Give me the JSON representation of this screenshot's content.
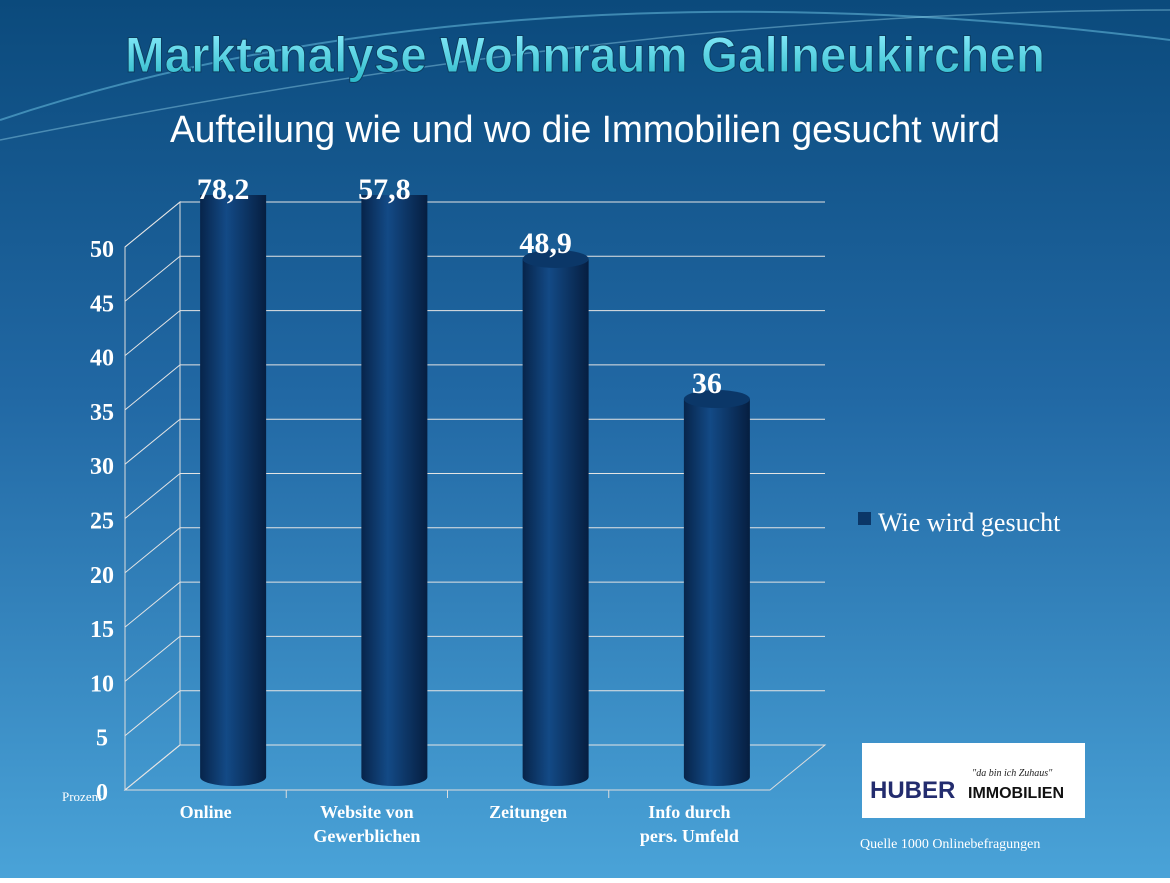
{
  "chart_data": {
    "type": "bar",
    "title": "Marktanalyse Wohnraum Gallneukirchen",
    "subtitle": "Aufteilung wie und wo die Immobilien gesucht wird",
    "y_label": "Prozent",
    "categories": [
      "Online",
      "Website von Gewerblichen",
      "Zeitungen",
      "Info durch pers. Umfeld"
    ],
    "series": [
      {
        "name": "Wie wird gesucht",
        "color": "#0b3768",
        "values": [
          78.2,
          57.8,
          48.9,
          36
        ],
        "value_labels": [
          "78,2",
          "57,8",
          "48,9",
          "36"
        ]
      }
    ],
    "ylim": [
      0,
      50
    ],
    "yticks": [
      0,
      5,
      10,
      15,
      20,
      25,
      30,
      35,
      40,
      45,
      50
    ],
    "grid": true,
    "legend": "right",
    "annotation": "Quelle 1000 Onlinebefragungen",
    "logo": {
      "name": "HUBER",
      "suffix": "IMMOBILIEN",
      "slogan": "\"da bin ich Zuhaus\""
    }
  }
}
